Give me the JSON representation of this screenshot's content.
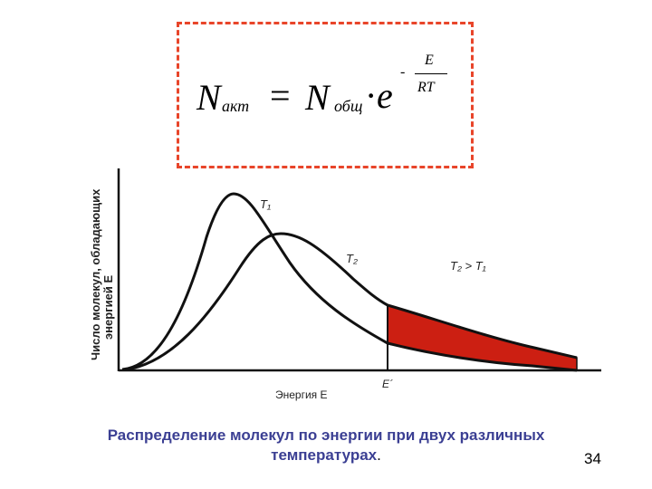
{
  "formula": {
    "lhs_symbol": "N",
    "lhs_subscript": "акт",
    "equals": "=",
    "rhs_symbol": "N",
    "rhs_subscript": "общ",
    "dot": "·",
    "base": "e",
    "exp_sign": "-",
    "exp_numerator": "E",
    "exp_denominator": "RT"
  },
  "chart": {
    "y_axis_label_line1": "Число молекул, обладающих",
    "y_axis_label_line2": "энергией E",
    "x_axis_label": "Энергия E",
    "threshold_label": "E´",
    "curve1_label": "T₁",
    "curve2_label": "T₂",
    "condition_label": "T₂ > T₁",
    "fill_color": "#cc1f12"
  },
  "caption": {
    "main": "Распределение молекул по энергии при двух различных температурах",
    "period": "."
  },
  "page_number": "34"
}
